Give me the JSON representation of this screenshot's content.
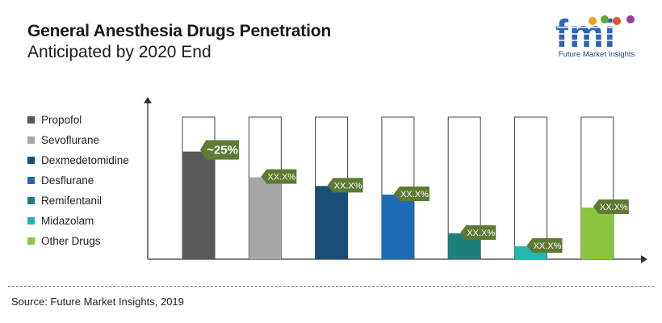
{
  "title": "General Anesthesia Drugs Penetration",
  "subtitle": "Anticipated by 2020 End",
  "logo": {
    "text": "fmi",
    "caption": "Future Market Insights"
  },
  "source": "Source: Future Market Insights, 2019",
  "chart_data": {
    "type": "bar",
    "categories": [
      "Propofol",
      "Sevoflurane",
      "Dexmedetomidine",
      "Desflurane",
      "Remifentanil",
      "Midazolam",
      "Other Drugs"
    ],
    "values": [
      25,
      19,
      17,
      15,
      6,
      3,
      12
    ],
    "data_labels": [
      "~25%",
      "XX.X%",
      "XX.X%",
      "XX.X%",
      "XX.X%",
      "XX.X%",
      "XX.X%"
    ],
    "colors": [
      "#595959",
      "#a6a6a6",
      "#1a4e77",
      "#1f6bb3",
      "#1d7f79",
      "#27b5b1",
      "#8cc63f"
    ],
    "label_color": "#5f7a33",
    "ylim": [
      0,
      33
    ],
    "legend_position": "left",
    "grid": false
  }
}
